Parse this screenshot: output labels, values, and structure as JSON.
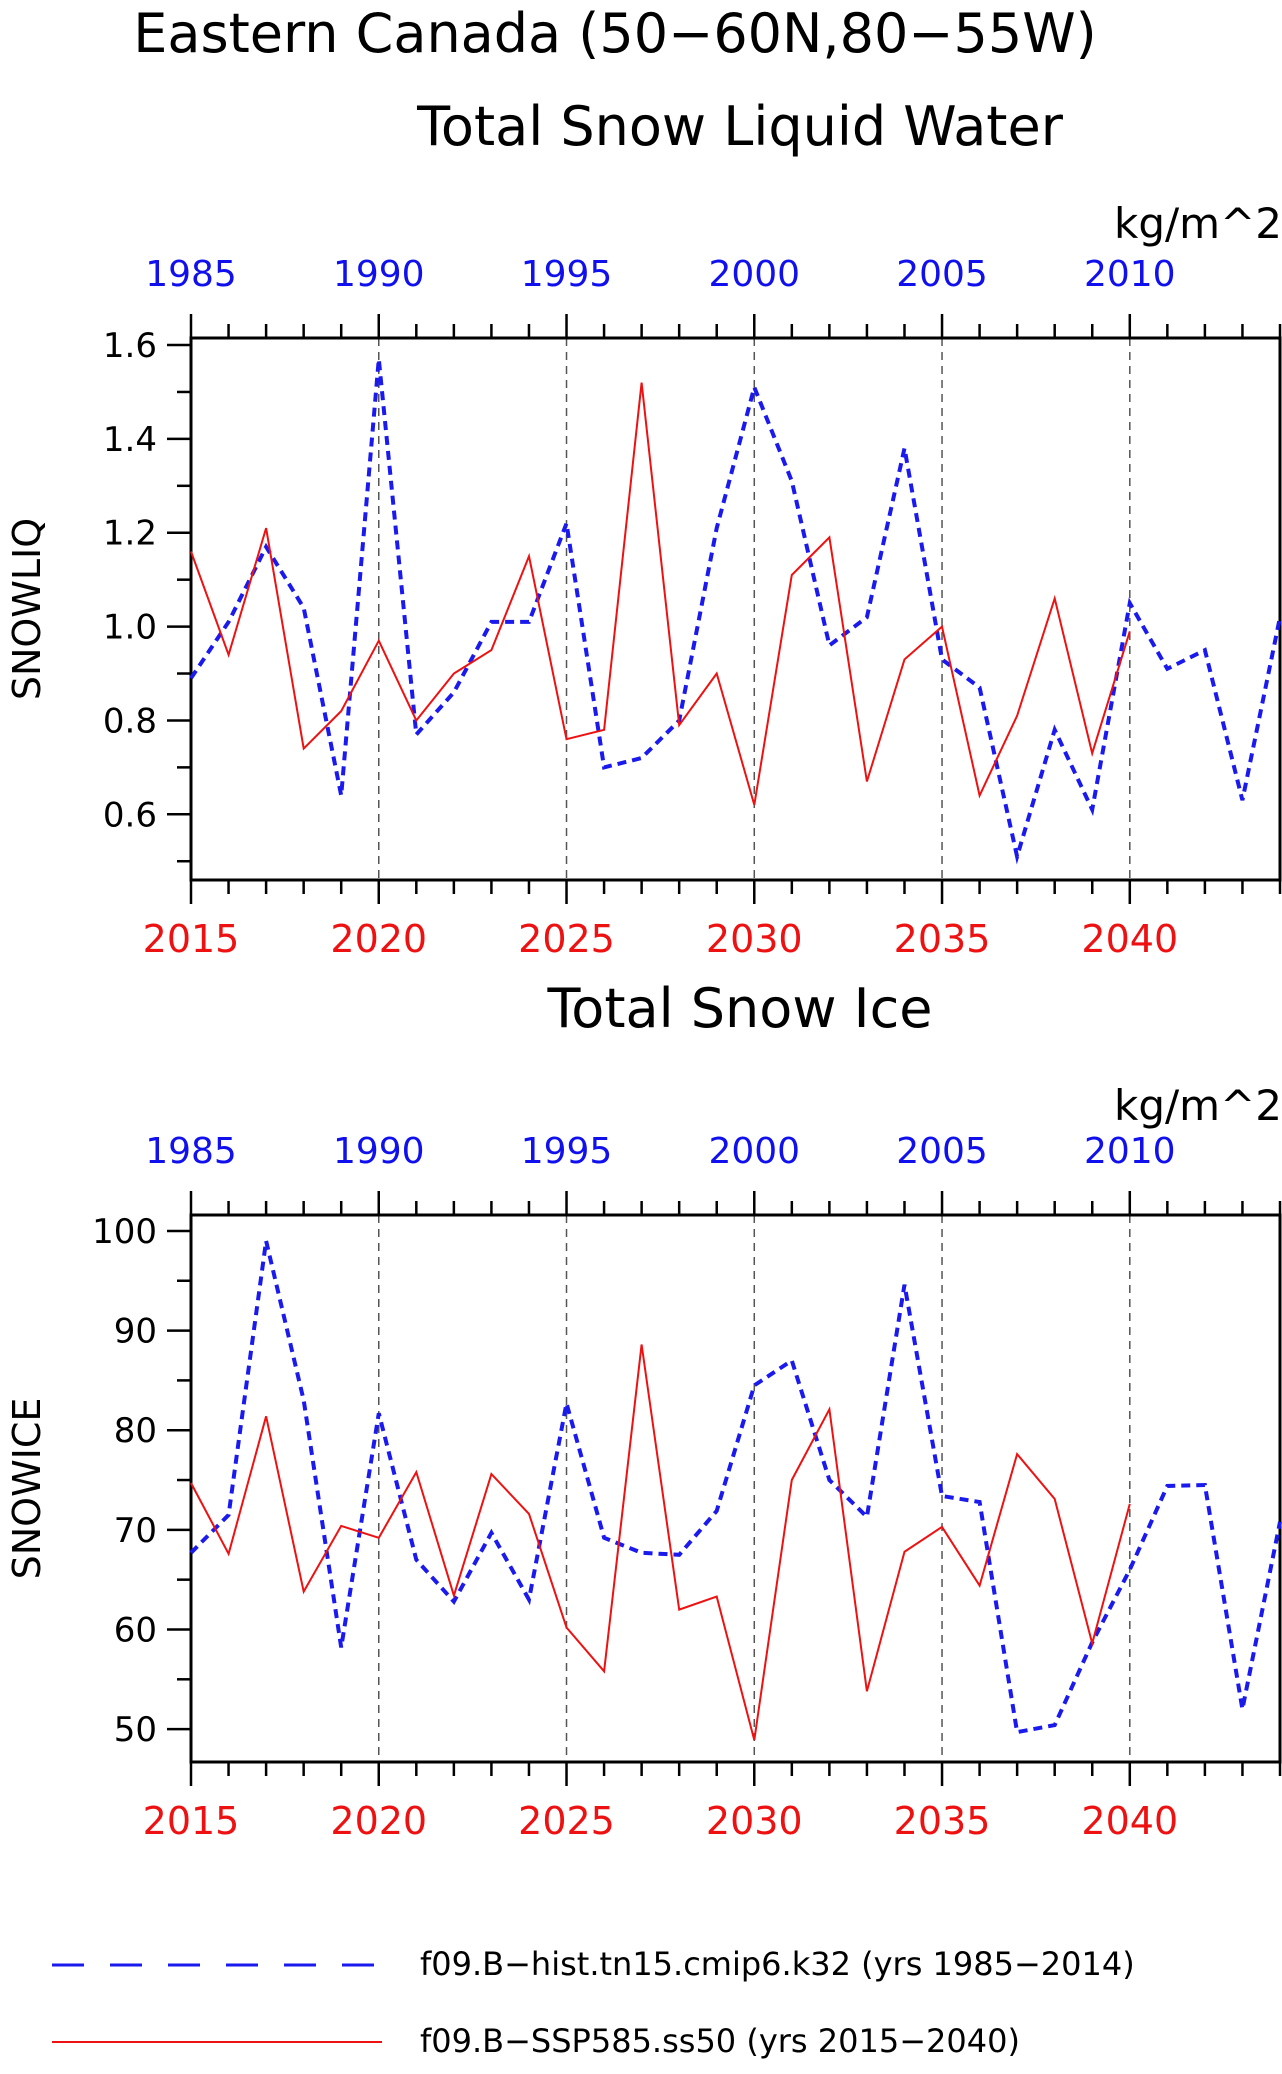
{
  "page": {
    "title_line1": "Eastern Canada (50−60N,80−55W)"
  },
  "colors": {
    "hist": "#1a1aee",
    "ssp": "#ee1111",
    "grid": "#555555"
  },
  "legend": [
    {
      "series": "hist",
      "label": "f09.B−hist.tn15.cmip6.k32 (yrs 1985−2014)",
      "style": "dashed"
    },
    {
      "series": "ssp",
      "label": "f09.B−SSP585.ss50 (yrs 2015−2040)",
      "style": "solid"
    }
  ],
  "chart_data": [
    {
      "type": "line",
      "title": "Total Snow Liquid Water",
      "units": "kg/m^2",
      "ylabel": "SNOWLIQ",
      "ylim": [
        0.46,
        1.615
      ],
      "yticks": [
        0.6,
        0.8,
        1.0,
        1.2,
        1.4,
        1.6
      ],
      "ytick_labels": [
        "0.6",
        "0.8",
        "1.0",
        "1.2",
        "1.4",
        "1.6"
      ],
      "bottom_axis": {
        "xlim": [
          2015,
          2044
        ],
        "ticks": [
          2015,
          2020,
          2025,
          2030,
          2035,
          2040
        ],
        "labels": [
          "2015",
          "2020",
          "2025",
          "2030",
          "2035",
          "2040"
        ]
      },
      "top_axis": {
        "xlim": [
          1985,
          2014
        ],
        "ticks": [
          1985,
          1990,
          1995,
          2000,
          2005,
          2010
        ],
        "labels": [
          "1985",
          "1990",
          "1995",
          "2000",
          "2005",
          "2010"
        ]
      },
      "grid": "vertical dashed at labeled ticks",
      "series": [
        {
          "id": "hist",
          "name": "f09.B−hist.tn15.cmip6.k32 (yrs 1985−2014)",
          "axis": "top",
          "x": [
            1985,
            1986,
            1987,
            1988,
            1989,
            1990,
            1991,
            1992,
            1993,
            1994,
            1995,
            1996,
            1997,
            1998,
            1999,
            2000,
            2001,
            2002,
            2003,
            2004,
            2005,
            2006,
            2007,
            2008,
            2009,
            2010,
            2011,
            2012,
            2013,
            2014
          ],
          "values": [
            0.89,
            1.01,
            1.17,
            1.04,
            0.64,
            1.57,
            0.77,
            0.86,
            1.01,
            1.01,
            1.22,
            0.7,
            0.72,
            0.8,
            1.21,
            1.51,
            1.31,
            0.96,
            1.02,
            1.38,
            0.93,
            0.87,
            0.51,
            0.78,
            0.61,
            1.05,
            0.91,
            0.95,
            0.63,
            1.02
          ]
        },
        {
          "id": "ssp",
          "name": "f09.B−SSP585.ss50 (yrs 2015−2040)",
          "axis": "bottom",
          "x": [
            2015,
            2016,
            2017,
            2018,
            2019,
            2020,
            2021,
            2022,
            2023,
            2024,
            2025,
            2026,
            2027,
            2028,
            2029,
            2030,
            2031,
            2032,
            2033,
            2034,
            2035,
            2036,
            2037,
            2038,
            2039,
            2040
          ],
          "values": [
            1.16,
            0.94,
            1.21,
            0.74,
            0.82,
            0.97,
            0.8,
            0.9,
            0.95,
            1.15,
            0.76,
            0.78,
            1.52,
            0.79,
            0.9,
            0.62,
            1.11,
            1.19,
            0.67,
            0.93,
            1.0,
            0.64,
            0.81,
            1.06,
            0.73,
            0.99
          ]
        }
      ]
    },
    {
      "type": "line",
      "title": "Total Snow Ice",
      "units": "kg/m^2",
      "ylabel": "SNOWICE",
      "ylim": [
        46.7,
        101.6
      ],
      "yticks": [
        50,
        60,
        70,
        80,
        90,
        100
      ],
      "ytick_labels": [
        "50",
        "60",
        "70",
        "80",
        "90",
        "100"
      ],
      "bottom_axis": {
        "xlim": [
          2015,
          2044
        ],
        "ticks": [
          2015,
          2020,
          2025,
          2030,
          2035,
          2040
        ],
        "labels": [
          "2015",
          "2020",
          "2025",
          "2030",
          "2035",
          "2040"
        ]
      },
      "top_axis": {
        "xlim": [
          1985,
          2014
        ],
        "ticks": [
          1985,
          1990,
          1995,
          2000,
          2005,
          2010
        ],
        "labels": [
          "1985",
          "1990",
          "1995",
          "2000",
          "2005",
          "2010"
        ]
      },
      "grid": "vertical dashed at labeled ticks",
      "series": [
        {
          "id": "hist",
          "name": "f09.B−hist.tn15.cmip6.k32 (yrs 1985−2014)",
          "axis": "top",
          "x": [
            1985,
            1986,
            1987,
            1988,
            1989,
            1990,
            1991,
            1992,
            1993,
            1994,
            1995,
            1996,
            1997,
            1998,
            1999,
            2000,
            2001,
            2002,
            2003,
            2004,
            2005,
            2006,
            2007,
            2008,
            2009,
            2010,
            2011,
            2012,
            2013,
            2014
          ],
          "values": [
            67.7,
            71.5,
            99.0,
            83.0,
            58.2,
            81.7,
            67.0,
            62.8,
            69.7,
            63.0,
            82.7,
            69.2,
            67.7,
            67.5,
            71.9,
            84.5,
            87.0,
            75.0,
            71.3,
            94.6,
            73.4,
            72.8,
            49.7,
            50.4,
            58.7,
            66.0,
            74.4,
            74.5,
            52.0,
            70.8
          ]
        },
        {
          "id": "ssp",
          "name": "f09.B−SSP585.ss50 (yrs 2015−2040)",
          "axis": "bottom",
          "x": [
            2015,
            2016,
            2017,
            2018,
            2019,
            2020,
            2021,
            2022,
            2023,
            2024,
            2025,
            2026,
            2027,
            2028,
            2029,
            2030,
            2031,
            2032,
            2033,
            2034,
            2035,
            2036,
            2037,
            2038,
            2039,
            2040
          ],
          "values": [
            74.7,
            67.6,
            81.4,
            63.8,
            70.4,
            69.2,
            75.8,
            63.4,
            75.6,
            71.6,
            60.2,
            55.8,
            88.6,
            62.0,
            63.3,
            48.9,
            75.0,
            82.1,
            53.8,
            67.8,
            70.3,
            64.4,
            77.6,
            73.1,
            58.6,
            72.6
          ]
        }
      ]
    }
  ]
}
